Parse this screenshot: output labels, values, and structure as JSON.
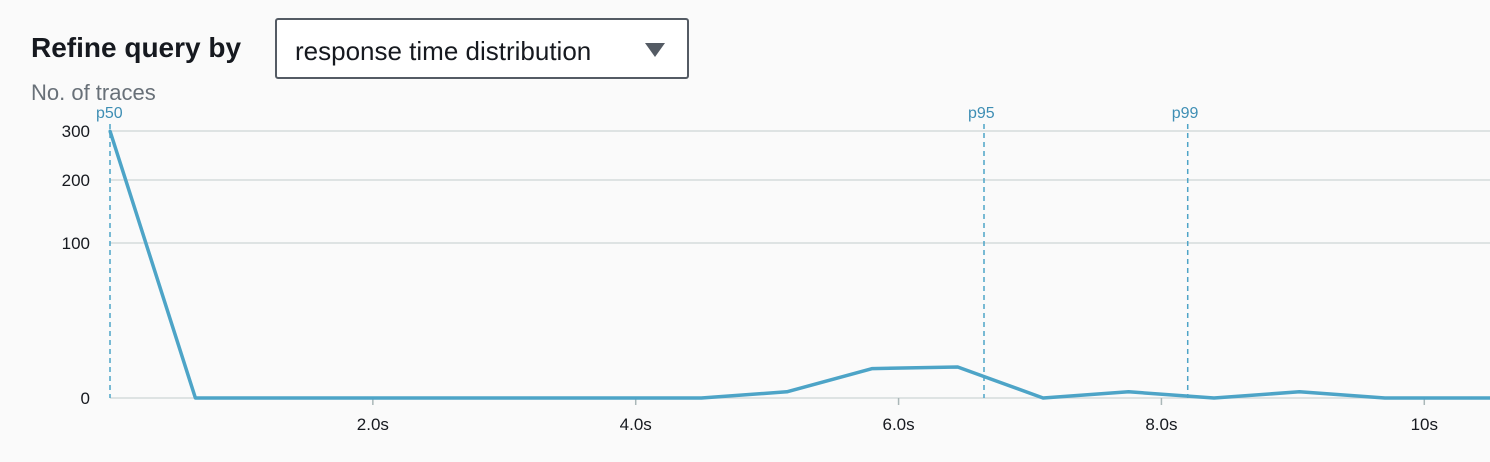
{
  "header": {
    "refine_label": "Refine query by",
    "select_value": "response time distribution",
    "caret_icon": "caret-down-icon"
  },
  "chart_data": {
    "type": "line",
    "ylabel": "No. of traces",
    "xlabel": "",
    "x_unit": "seconds",
    "x_tick_labels": [
      {
        "value": 2,
        "label": "2.0s"
      },
      {
        "value": 4,
        "label": "4.0s"
      },
      {
        "value": 6,
        "label": "6.0s"
      },
      {
        "value": 8,
        "label": "8.0s"
      },
      {
        "value": 10,
        "label": "10s"
      }
    ],
    "y_tick_labels": [
      {
        "value": 0,
        "label": "0"
      },
      {
        "value": 100,
        "label": "100"
      },
      {
        "value": 200,
        "label": "200"
      },
      {
        "value": 300,
        "label": "300"
      }
    ],
    "xlim": [
      0.0,
      10.5
    ],
    "y_scale_note": "non-linear axis; ticks 0, 100, 200, 300",
    "grid": true,
    "color": "#4da4c7",
    "series": [
      {
        "points": [
          {
            "x": 0.0,
            "y": 300
          },
          {
            "x": 0.65,
            "y": 0
          },
          {
            "x": 1.3,
            "y": 0
          },
          {
            "x": 1.95,
            "y": 0
          },
          {
            "x": 2.6,
            "y": 0
          },
          {
            "x": 3.2,
            "y": 0
          },
          {
            "x": 3.85,
            "y": 0
          },
          {
            "x": 4.5,
            "y": 0
          },
          {
            "x": 5.15,
            "y": 4
          },
          {
            "x": 5.8,
            "y": 19
          },
          {
            "x": 6.45,
            "y": 20
          },
          {
            "x": 7.1,
            "y": 0
          },
          {
            "x": 7.75,
            "y": 4
          },
          {
            "x": 8.4,
            "y": 0
          },
          {
            "x": 9.05,
            "y": 4
          },
          {
            "x": 9.7,
            "y": 0
          },
          {
            "x": 10.35,
            "y": 0
          },
          {
            "x": 10.5,
            "y": 0
          }
        ]
      }
    ],
    "percentiles": [
      {
        "label": "p50",
        "x": 0.0
      },
      {
        "label": "p95",
        "x": 6.65
      },
      {
        "label": "p99",
        "x": 8.2
      }
    ]
  }
}
